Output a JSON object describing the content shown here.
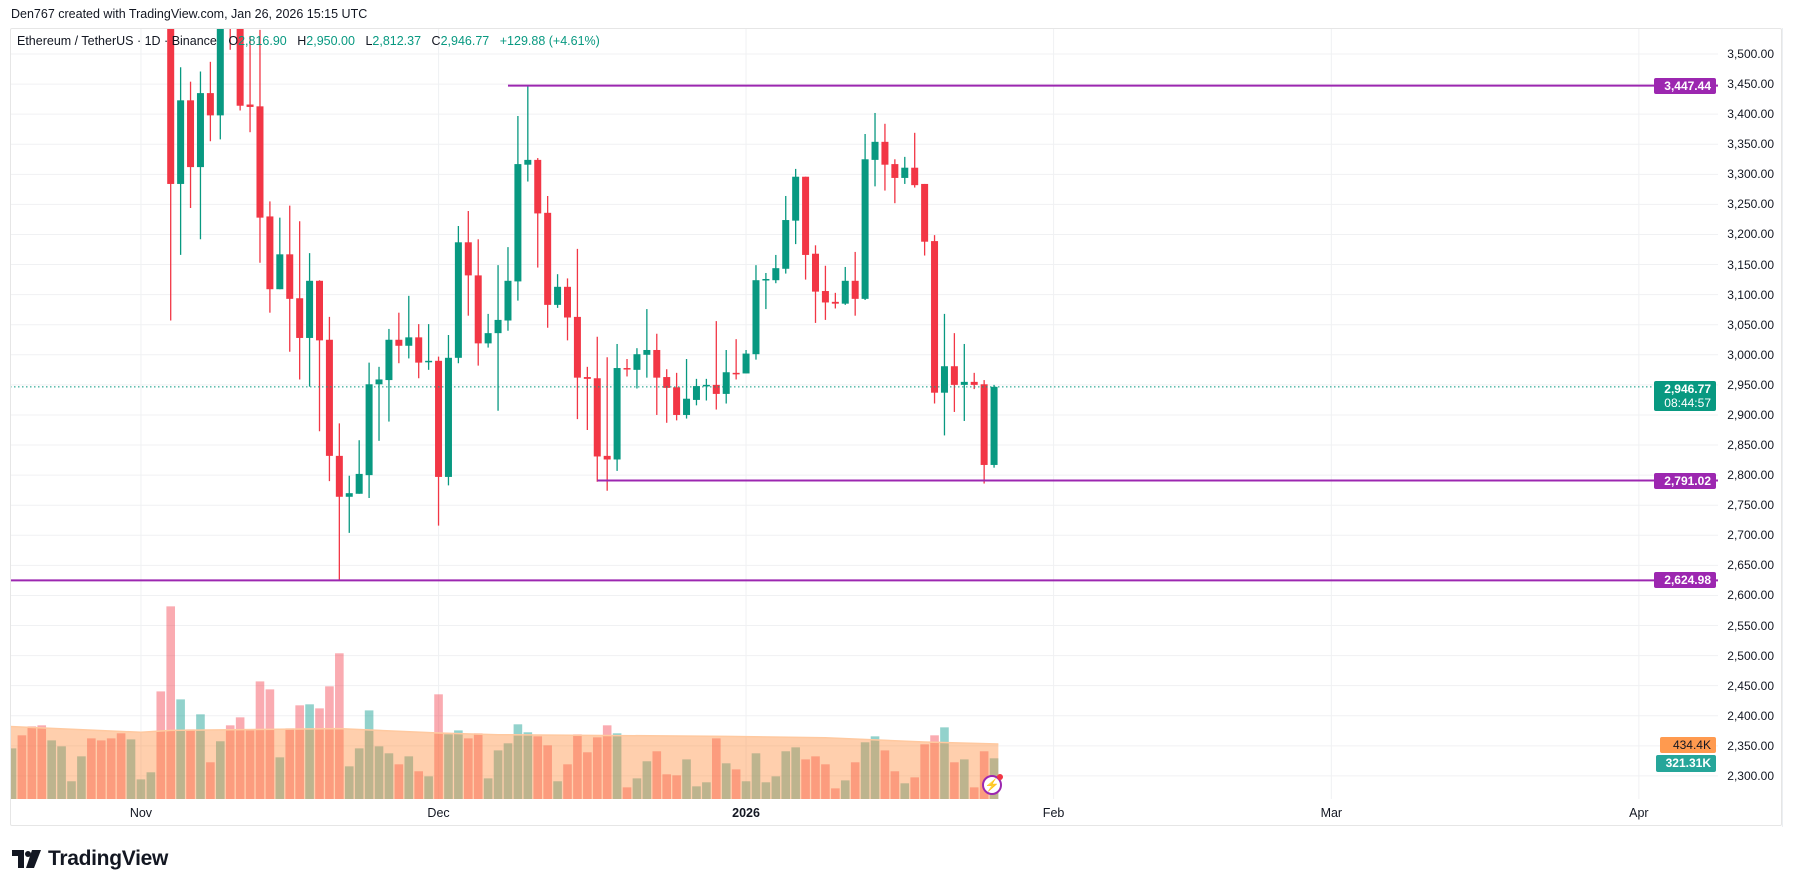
{
  "credit": "Den767 created with TradingView.com, Jan 26, 2026 15:15 UTC",
  "legend": {
    "symbol": "Ethereum / TetherUS · 1D · Binance",
    "o_key": "O",
    "o_val": "2,816.90",
    "h_key": "H",
    "h_val": "2,950.00",
    "l_key": "L",
    "l_val": "2,812.37",
    "c_key": "C",
    "c_val": "2,946.77",
    "change": "+129.88 (+4.61%)"
  },
  "colors": {
    "up": "#089981",
    "down": "#f23645",
    "level": "#9c27b0",
    "ma": "#ff8833"
  },
  "current_price": {
    "price": 2946.77,
    "label": "2,946.77",
    "countdown": "08:44:57"
  },
  "levels": [
    {
      "price": 3447.44,
      "label": "3,447.44",
      "start_bar": 34
    },
    {
      "price": 2791.02,
      "label": "2,791.02",
      "start_bar": 43
    },
    {
      "price": 2624.98,
      "label": "2,624.98",
      "start_bar": null
    }
  ],
  "price_axis": [
    "3,500.00",
    "3,450.00",
    "3,400.00",
    "3,350.00",
    "3,300.00",
    "3,250.00",
    "3,200.00",
    "3,150.00",
    "3,100.00",
    "3,050.00",
    "3,000.00",
    "2,950.00",
    "2,900.00",
    "2,850.00",
    "2,800.00",
    "2,750.00",
    "2,700.00",
    "2,650.00",
    "2,600.00",
    "2,550.00",
    "2,500.00",
    "2,450.00",
    "2,400.00",
    "2,350.00",
    "2,300.00"
  ],
  "time_axis": [
    {
      "label": "Nov",
      "bar": -3
    },
    {
      "label": "Dec",
      "bar": 27
    },
    {
      "label": "2026",
      "bar": 58
    },
    {
      "label": "Feb",
      "bar": 89
    },
    {
      "label": "Mar",
      "bar": 117
    },
    {
      "label": "Apr",
      "bar": 148
    }
  ],
  "volume_labels": {
    "ma": "434.4K",
    "last": "321.31K"
  },
  "logo": "TradingView",
  "chart_data": {
    "type": "candlestick",
    "ohlc": [
      [
        3560,
        3600,
        3057,
        3284
      ],
      [
        3284,
        3478,
        3166,
        3423
      ],
      [
        3423,
        3454,
        3244,
        3312
      ],
      [
        3312,
        3471,
        3192,
        3435
      ],
      [
        3435,
        3487,
        3355,
        3398
      ],
      [
        3398,
        3590,
        3358,
        3560
      ],
      [
        3600,
        3630,
        3507,
        3550
      ],
      [
        3600,
        3640,
        3406,
        3414
      ],
      [
        3416,
        3530,
        3370,
        3412
      ],
      [
        3413,
        3540,
        3153,
        3228
      ],
      [
        3230,
        3255,
        3070,
        3109
      ],
      [
        3109,
        3228,
        3109,
        3167
      ],
      [
        3167,
        3248,
        3005,
        3093
      ],
      [
        3094,
        3222,
        2959,
        3028
      ],
      [
        3028,
        3169,
        2947,
        3123
      ],
      [
        3123,
        3124,
        2873,
        3024
      ],
      [
        3025,
        3063,
        2790,
        2832
      ],
      [
        2832,
        2886,
        2624,
        2764
      ],
      [
        2764,
        2799,
        2704,
        2770
      ],
      [
        2769,
        2858,
        2769,
        2802
      ],
      [
        2800,
        2987,
        2762,
        2951
      ],
      [
        2951,
        2980,
        2857,
        2959
      ],
      [
        2958,
        3043,
        2889,
        3025
      ],
      [
        3025,
        3070,
        2986,
        3015
      ],
      [
        3015,
        3098,
        2994,
        3029
      ],
      [
        3029,
        3051,
        2961,
        2987
      ],
      [
        2989,
        3051,
        2975,
        2990
      ],
      [
        2990,
        2997,
        2716,
        2797
      ],
      [
        2797,
        3033,
        2783,
        2995
      ],
      [
        2995,
        3214,
        2986,
        3187
      ],
      [
        3187,
        3239,
        3065,
        3132
      ],
      [
        3132,
        3192,
        2982,
        3019
      ],
      [
        3019,
        3068,
        3012,
        3036
      ],
      [
        3036,
        3149,
        2907,
        3058
      ],
      [
        3057,
        3179,
        3040,
        3123
      ],
      [
        3122,
        3397,
        3090,
        3317
      ],
      [
        3316,
        3446,
        3288,
        3324
      ],
      [
        3324,
        3327,
        3145,
        3235
      ],
      [
        3236,
        3264,
        3045,
        3083
      ],
      [
        3083,
        3134,
        3078,
        3113
      ],
      [
        3113,
        3127,
        3024,
        3062
      ],
      [
        3063,
        3176,
        2893,
        2962
      ],
      [
        2963,
        2980,
        2875,
        2960
      ],
      [
        2961,
        3030,
        2789,
        2831
      ],
      [
        2832,
        2996,
        2774,
        2826
      ],
      [
        2826,
        3018,
        2807,
        2978
      ],
      [
        2978,
        2993,
        2964,
        2977
      ],
      [
        2975,
        3011,
        2944,
        3001
      ],
      [
        3000,
        3076,
        2962,
        3008
      ],
      [
        3008,
        3035,
        2900,
        2962
      ],
      [
        2963,
        2976,
        2887,
        2945
      ],
      [
        2946,
        2970,
        2891,
        2900
      ],
      [
        2900,
        2993,
        2894,
        2927
      ],
      [
        2925,
        2960,
        2916,
        2948
      ],
      [
        2948,
        2960,
        2924,
        2950
      ],
      [
        2950,
        3056,
        2909,
        2935
      ],
      [
        2935,
        3008,
        2919,
        2971
      ],
      [
        2970,
        3026,
        2959,
        2969
      ],
      [
        2969,
        3008,
        2969,
        3002
      ],
      [
        3001,
        3149,
        2992,
        3124
      ],
      [
        3124,
        3136,
        3076,
        3126
      ],
      [
        3124,
        3166,
        3119,
        3144
      ],
      [
        3143,
        3264,
        3135,
        3224
      ],
      [
        3223,
        3309,
        3184,
        3296
      ],
      [
        3296,
        3296,
        3125,
        3166
      ],
      [
        3168,
        3182,
        3053,
        3105
      ],
      [
        3106,
        3148,
        3058,
        3087
      ],
      [
        3088,
        3103,
        3077,
        3085
      ],
      [
        3085,
        3146,
        3083,
        3123
      ],
      [
        3123,
        3171,
        3065,
        3093
      ],
      [
        3093,
        3367,
        3091,
        3325
      ],
      [
        3324,
        3402,
        3280,
        3354
      ],
      [
        3354,
        3384,
        3273,
        3316
      ],
      [
        3317,
        3325,
        3252,
        3294
      ],
      [
        3294,
        3329,
        3284,
        3311
      ],
      [
        3311,
        3369,
        3278,
        3282
      ],
      [
        3284,
        3284,
        3165,
        3188
      ],
      [
        3189,
        3199,
        2919,
        2937
      ],
      [
        2937,
        3068,
        2866,
        2981
      ],
      [
        2981,
        3036,
        2905,
        2950
      ],
      [
        2950,
        3018,
        2890,
        2955
      ],
      [
        2955,
        2970,
        2943,
        2950
      ],
      [
        2951,
        2958,
        2786,
        2816.9
      ],
      [
        2816.9,
        2950,
        2812.37,
        2946.77
      ]
    ],
    "volume_k": [
      400,
      503,
      574,
      582,
      463,
      416,
      140,
      337,
      479,
      463,
      479,
      519,
      471,
      155,
      211,
      850,
      1522,
      787,
      550,
      669,
      290,
      456,
      582,
      645,
      542,
      929,
      866,
      329,
      558,
      740,
      748,
      716,
      890,
      1151,
      258,
      400,
      700,
      416,
      361,
      274,
      337,
      219,
      179,
      827,
      511,
      542,
      479,
      519,
      163,
      384,
      440,
      590,
      527,
      495,
      424,
      140,
      274,
      511,
      369,
      487,
      582,
      519,
      92,
      163,
      298,
      377,
      195,
      187,
      313,
      100,
      132,
      479,
      282,
      234,
      140,
      361,
      132,
      179,
      377,
      408,
      313,
      337,
      274,
      84,
      147,
      290,
      448,
      495,
      384,
      219,
      124,
      171,
      432,
      503,
      566,
      290,
      313,
      92,
      377,
      321.31
    ],
    "pre_volume_up": [
      1,
      0,
      0,
      0,
      1,
      1,
      1,
      1,
      0,
      0,
      0,
      0,
      1,
      1,
      1,
      0
    ],
    "volume_ma_points": [
      [
        0,
        574
      ],
      [
        13,
        527
      ],
      [
        16,
        542
      ],
      [
        33,
        556
      ],
      [
        43,
        521
      ],
      [
        49,
        508
      ],
      [
        72,
        495
      ],
      [
        82,
        484
      ],
      [
        92,
        450
      ],
      [
        99,
        434.4
      ]
    ],
    "ylim": [
      2270,
      3540
    ]
  }
}
